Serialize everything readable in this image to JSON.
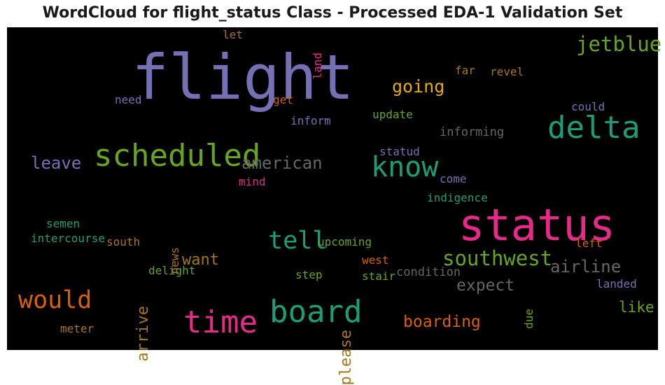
{
  "chart_data": {
    "type": "wordcloud",
    "title": "WordCloud for flight_status Class - Processed EDA-1 Validation Set",
    "background": "#000000",
    "colormap": "Dark2",
    "words": [
      {
        "text": "flight",
        "weight": 1.0,
        "color": "#7570b3"
      },
      {
        "text": "status",
        "weight": 0.7,
        "color": "#e7298a"
      },
      {
        "text": "board",
        "weight": 0.5,
        "color": "#1b9e77"
      },
      {
        "text": "delta",
        "weight": 0.5,
        "color": "#1b9e77"
      },
      {
        "text": "scheduled",
        "weight": 0.5,
        "color": "#66a61e"
      },
      {
        "text": "time",
        "weight": 0.5,
        "color": "#e7298a"
      },
      {
        "text": "know",
        "weight": 0.45,
        "color": "#1b9e77"
      },
      {
        "text": "tell",
        "weight": 0.4,
        "color": "#1b9e77"
      },
      {
        "text": "would",
        "weight": 0.4,
        "color": "#d95f02"
      },
      {
        "text": "jetblue",
        "weight": 0.33,
        "color": "#66a61e"
      },
      {
        "text": "southwest",
        "weight": 0.33,
        "color": "#66a61e"
      },
      {
        "text": "going",
        "weight": 0.28,
        "color": "#e6ab02"
      },
      {
        "text": "airline",
        "weight": 0.27,
        "color": "#666666"
      },
      {
        "text": "american",
        "weight": 0.27,
        "color": "#666666"
      },
      {
        "text": "leave",
        "weight": 0.27,
        "color": "#7570b3"
      },
      {
        "text": "expect",
        "weight": 0.26,
        "color": "#666666"
      },
      {
        "text": "boarding",
        "weight": 0.26,
        "color": "#d95f02"
      },
      {
        "text": "want",
        "weight": 0.25,
        "color": "#a6761d"
      },
      {
        "text": "arrive",
        "weight": 0.25,
        "color": "#a6761d"
      },
      {
        "text": "please",
        "weight": 0.25,
        "color": "#a6761d"
      },
      {
        "text": "like",
        "weight": 0.24,
        "color": "#66a61e"
      },
      {
        "text": "informing",
        "weight": 0.19,
        "color": "#666666"
      },
      {
        "text": "condition",
        "weight": 0.19,
        "color": "#666666"
      },
      {
        "text": "intercourse",
        "weight": 0.18,
        "color": "#1b9e77"
      },
      {
        "text": "inform",
        "weight": 0.18,
        "color": "#7570b3"
      },
      {
        "text": "update",
        "weight": 0.18,
        "color": "#66a61e"
      },
      {
        "text": "upcoming",
        "weight": 0.18,
        "color": "#66a61e"
      },
      {
        "text": "could",
        "weight": 0.18,
        "color": "#7570b3"
      },
      {
        "text": "statud",
        "weight": 0.18,
        "color": "#7570b3"
      },
      {
        "text": "indigence",
        "weight": 0.18,
        "color": "#1b9e77"
      },
      {
        "text": "need",
        "weight": 0.18,
        "color": "#7570b3"
      },
      {
        "text": "delight",
        "weight": 0.18,
        "color": "#66a61e"
      },
      {
        "text": "west",
        "weight": 0.18,
        "color": "#d95f02"
      },
      {
        "text": "stair",
        "weight": 0.18,
        "color": "#66a61e"
      },
      {
        "text": "step",
        "weight": 0.18,
        "color": "#66a61e"
      },
      {
        "text": "south",
        "weight": 0.18,
        "color": "#a6761d"
      },
      {
        "text": "semen",
        "weight": 0.18,
        "color": "#1b9e77"
      },
      {
        "text": "landed",
        "weight": 0.18,
        "color": "#7570b3"
      },
      {
        "text": "left",
        "weight": 0.18,
        "color": "#d95f02"
      },
      {
        "text": "far",
        "weight": 0.18,
        "color": "#a6761d"
      },
      {
        "text": "revel",
        "weight": 0.18,
        "color": "#a6761d"
      },
      {
        "text": "come",
        "weight": 0.18,
        "color": "#7570b3"
      },
      {
        "text": "mind",
        "weight": 0.18,
        "color": "#e7298a"
      },
      {
        "text": "get",
        "weight": 0.18,
        "color": "#d95f02"
      },
      {
        "text": "let",
        "weight": 0.18,
        "color": "#a6761d"
      },
      {
        "text": "land",
        "weight": 0.18,
        "color": "#e7298a"
      },
      {
        "text": "news",
        "weight": 0.18,
        "color": "#a6761d"
      },
      {
        "text": "due",
        "weight": 0.18,
        "color": "#66a61e"
      },
      {
        "text": "meter",
        "weight": 0.18,
        "color": "#a6761d"
      }
    ]
  }
}
